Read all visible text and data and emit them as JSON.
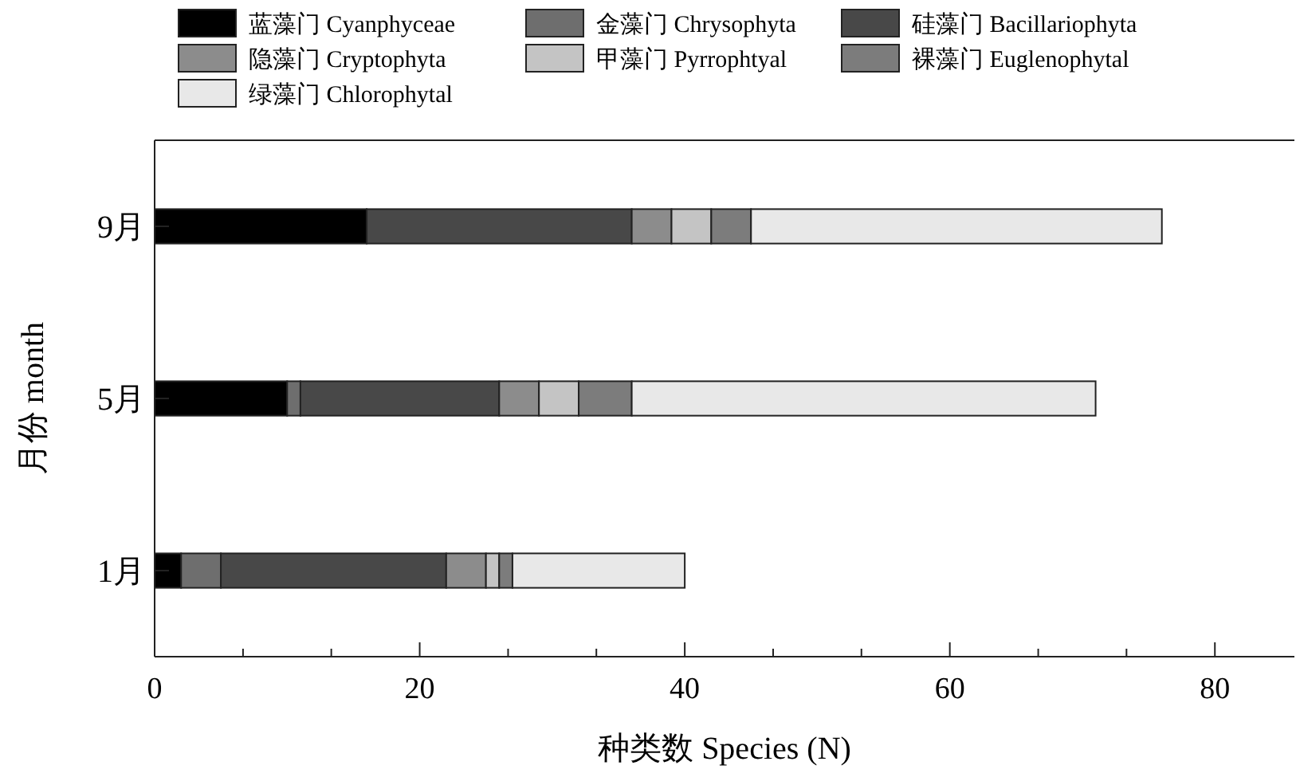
{
  "chart_data": {
    "type": "bar",
    "orientation": "horizontal",
    "stacked": true,
    "xlabel": "种类数  Species (N)",
    "ylabel": "月份  month",
    "categories": [
      "9月",
      "5月",
      "1月"
    ],
    "series": [
      {
        "name": "蓝藻门  Cyanphyceae",
        "color": "#000000",
        "values": [
          16,
          10,
          2
        ]
      },
      {
        "name": "金藻门  Chrysophyta",
        "color": "#6e6e6e",
        "values": [
          0,
          1,
          3
        ]
      },
      {
        "name": "硅藻门  Bacillariophyta",
        "color": "#484848",
        "values": [
          20,
          15,
          17
        ]
      },
      {
        "name": "隐藻门  Cryptophyta",
        "color": "#8c8c8c",
        "values": [
          3,
          3,
          3
        ]
      },
      {
        "name": "甲藻门  Pyrrophtyal",
        "color": "#c4c4c4",
        "values": [
          3,
          3,
          1
        ]
      },
      {
        "name": "裸藻门  Euglenophytal",
        "color": "#7c7c7c",
        "values": [
          3,
          4,
          1
        ]
      },
      {
        "name": "绿藻门  Chlorophytal",
        "color": "#e8e8e8",
        "values": [
          31,
          35,
          13
        ]
      }
    ],
    "xlim": [
      0,
      86
    ],
    "xticks": [
      0,
      {
        "value": 6.67,
        "label": null
      },
      {
        "value": 13.33,
        "label": null
      },
      20,
      {
        "value": 26.67,
        "label": null
      },
      {
        "value": 33.33,
        "label": null
      },
      40,
      {
        "value": 46.67,
        "label": null
      },
      {
        "value": 53.33,
        "label": null
      },
      60,
      {
        "value": 66.67,
        "label": null
      },
      {
        "value": 73.33,
        "label": null
      },
      80
    ],
    "legend": "top",
    "grid": false
  }
}
